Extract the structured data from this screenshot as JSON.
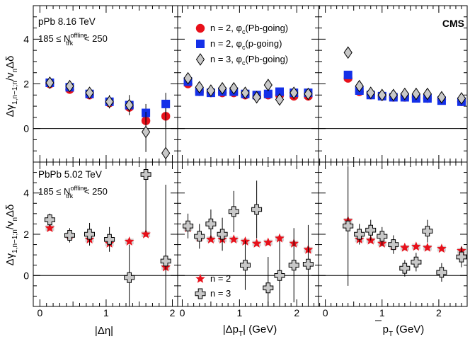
{
  "figure": {
    "experiment_label": "CMS",
    "xlabels": [
      "|Δη|",
      "|Δp",
      "p"
    ],
    "xlabel_unit": " (GeV)",
    "xlabel_sub": "T",
    "ylabel": "Δγ",
    "ylabel_sub": "1,n−1;n",
    "ylabel_rest": "/v",
    "ylabel_n": "n",
    "ylabel_delta": "Δδ"
  },
  "rows": [
    {
      "system": "pPb 8.16 TeV",
      "cut": {
        "prefix": "185 ≤ N",
        "sup": "offline",
        "sub": "trk",
        "suffix": " < 250"
      },
      "legend": [
        {
          "marker": "circle",
          "label_a": "n = 2, φ",
          "sub": "c",
          "label_b": "(Pb-going)"
        },
        {
          "marker": "square",
          "label_a": "n = 2, φ",
          "sub": "c",
          "label_b": "(p-going)"
        },
        {
          "marker": "diamond",
          "label_a": "n = 3, φ",
          "sub": "c",
          "label_b": "(Pb-going)"
        }
      ]
    },
    {
      "system": "PbPb 5.02 TeV",
      "cut": {
        "prefix": "185 ≤ N",
        "sup": "offline",
        "sub": "trk",
        "suffix": " < 250"
      },
      "legend": [
        {
          "marker": "star",
          "label_a": "n = 2",
          "sub": "",
          "label_b": ""
        },
        {
          "marker": "cross",
          "label_a": "n = 3",
          "sub": "",
          "label_b": ""
        }
      ]
    }
  ],
  "chart_data": [
    {
      "type": "scatter",
      "row": 0,
      "col": 0,
      "xlabel": "|Δη|",
      "ylabel": "Δγ1,n−1;n/vnΔδ",
      "xlim": [
        -0.1,
        2.08
      ],
      "ylim": [
        -1.5,
        5.5
      ],
      "xticks": [
        0,
        1,
        2
      ],
      "yticks": [
        0,
        2,
        4
      ],
      "series": [
        {
          "name": "n = 2, φc(Pb-going)",
          "marker": "circle",
          "x": [
            0.15,
            0.45,
            0.75,
            1.05,
            1.35,
            1.6,
            1.9
          ],
          "y": [
            2.0,
            1.75,
            1.5,
            1.15,
            0.95,
            0.35,
            0.55
          ],
          "err": [
            0.1,
            0.1,
            0.1,
            0.15,
            0.2,
            0.4,
            0.5
          ]
        },
        {
          "name": "n = 2, φc(p-going)",
          "marker": "square",
          "x": [
            0.15,
            0.45,
            0.75,
            1.05,
            1.35,
            1.6,
            1.9
          ],
          "y": [
            2.05,
            1.85,
            1.55,
            1.2,
            1.05,
            0.7,
            1.1
          ],
          "err": [
            0.1,
            0.1,
            0.1,
            0.15,
            0.2,
            0.4,
            0.5
          ]
        },
        {
          "name": "n = 3, φc(Pb-going)",
          "marker": "diamond",
          "x": [
            0.15,
            0.45,
            0.75,
            1.05,
            1.35,
            1.6,
            1.9
          ],
          "y": [
            2.05,
            1.9,
            1.6,
            1.2,
            1.05,
            -0.15,
            -1.1
          ],
          "err": [
            0.15,
            0.15,
            0.2,
            0.3,
            0.45,
            0.9,
            1.9
          ]
        }
      ]
    },
    {
      "type": "scatter",
      "row": 0,
      "col": 1,
      "xlabel": "|ΔpT| (GeV)",
      "ylabel": "",
      "xlim": [
        -0.08,
        2.38
      ],
      "ylim": [
        -1.5,
        5.5
      ],
      "xticks": [
        0,
        1,
        2
      ],
      "yticks": [
        0,
        2,
        4
      ],
      "series": [
        {
          "name": "n = 2, φc(Pb-going)",
          "marker": "circle",
          "x": [
            0.1,
            0.3,
            0.5,
            0.7,
            0.9,
            1.1,
            1.3,
            1.5,
            1.7,
            1.95,
            2.2
          ],
          "y": [
            2.0,
            1.65,
            1.6,
            1.6,
            1.6,
            1.5,
            1.45,
            1.5,
            1.5,
            1.45,
            1.45
          ],
          "err": [
            0.05,
            0.05,
            0.05,
            0.05,
            0.05,
            0.05,
            0.05,
            0.05,
            0.05,
            0.05,
            0.05
          ]
        },
        {
          "name": "n = 2, φc(p-going)",
          "marker": "square",
          "x": [
            0.1,
            0.3,
            0.5,
            0.7,
            0.9,
            1.1,
            1.3,
            1.5,
            1.7,
            1.95,
            2.2
          ],
          "y": [
            2.1,
            1.65,
            1.6,
            1.65,
            1.65,
            1.55,
            1.5,
            1.55,
            1.65,
            1.6,
            1.6
          ],
          "err": [
            0.05,
            0.05,
            0.05,
            0.05,
            0.05,
            0.05,
            0.05,
            0.05,
            0.05,
            0.05,
            0.05
          ]
        },
        {
          "name": "n = 3, φc(Pb-going)",
          "marker": "diamond",
          "x": [
            0.1,
            0.3,
            0.5,
            0.7,
            0.9,
            1.1,
            1.3,
            1.5,
            1.7,
            1.95,
            2.2
          ],
          "y": [
            2.25,
            1.85,
            1.7,
            1.8,
            1.8,
            1.6,
            1.4,
            1.95,
            1.3,
            1.6,
            1.55
          ],
          "err": [
            0.15,
            0.15,
            0.15,
            0.15,
            0.15,
            0.15,
            0.15,
            0.15,
            0.15,
            0.15,
            0.15
          ]
        }
      ]
    },
    {
      "type": "scatter",
      "row": 0,
      "col": 2,
      "xlabel": "pT (GeV)",
      "ylabel": "",
      "xlim": [
        -0.12,
        2.5
      ],
      "ylim": [
        -1.5,
        5.5
      ],
      "xticks": [
        0,
        1,
        2
      ],
      "yticks": [
        0,
        2,
        4
      ],
      "series": [
        {
          "name": "n = 2, φc(Pb-going)",
          "marker": "circle",
          "x": [
            0.4,
            0.6,
            0.8,
            1.0,
            1.2,
            1.4,
            1.6,
            1.8,
            2.05,
            2.4
          ],
          "y": [
            2.25,
            1.65,
            1.5,
            1.45,
            1.4,
            1.4,
            1.4,
            1.35,
            1.3,
            1.2
          ],
          "err": [
            0.05,
            0.05,
            0.05,
            0.05,
            0.05,
            0.05,
            0.05,
            0.05,
            0.05,
            0.05
          ]
        },
        {
          "name": "n = 2, φc(p-going)",
          "marker": "square",
          "x": [
            0.4,
            0.6,
            0.8,
            1.0,
            1.2,
            1.4,
            1.6,
            1.8,
            2.05,
            2.4
          ],
          "y": [
            2.4,
            1.7,
            1.5,
            1.45,
            1.4,
            1.4,
            1.35,
            1.35,
            1.25,
            1.2
          ],
          "err": [
            0.05,
            0.05,
            0.05,
            0.05,
            0.05,
            0.05,
            0.05,
            0.05,
            0.05,
            0.05
          ]
        },
        {
          "name": "n = 3, φc(Pb-going)",
          "marker": "diamond",
          "x": [
            0.4,
            0.6,
            0.8,
            1.0,
            1.2,
            1.4,
            1.6,
            1.8,
            2.05,
            2.4
          ],
          "y": [
            3.4,
            1.9,
            1.6,
            1.5,
            1.5,
            1.55,
            1.55,
            1.55,
            1.4,
            1.35
          ],
          "err": [
            0.25,
            0.15,
            0.12,
            0.12,
            0.12,
            0.12,
            0.12,
            0.12,
            0.12,
            0.12
          ]
        }
      ]
    },
    {
      "type": "scatter",
      "row": 1,
      "col": 0,
      "xlabel": "|Δη|",
      "ylabel": "Δγ1,n−1;n/vnΔδ",
      "xlim": [
        -0.1,
        2.08
      ],
      "ylim": [
        -1.5,
        5.5
      ],
      "xticks": [
        0,
        1,
        2
      ],
      "yticks": [
        0,
        2,
        4
      ],
      "series": [
        {
          "name": "n = 2",
          "marker": "star",
          "x": [
            0.15,
            0.45,
            0.75,
            1.05,
            1.35,
            1.6,
            1.9
          ],
          "y": [
            2.3,
            1.95,
            1.75,
            1.55,
            1.65,
            2.0,
            0.4
          ],
          "err": [
            0.1,
            0.1,
            0.1,
            0.1,
            0.1,
            0.1,
            0.1
          ]
        },
        {
          "name": "n = 3",
          "marker": "cross",
          "x": [
            0.15,
            0.45,
            0.75,
            1.05,
            1.35,
            1.6,
            1.9
          ],
          "y": [
            2.7,
            1.95,
            2.0,
            1.75,
            -0.1,
            4.9,
            0.7
          ],
          "err": [
            0.3,
            0.35,
            0.55,
            0.6,
            1.6,
            2.8,
            3.7
          ]
        }
      ]
    },
    {
      "type": "scatter",
      "row": 1,
      "col": 1,
      "xlabel": "|ΔpT| (GeV)",
      "ylabel": "",
      "xlim": [
        -0.08,
        2.38
      ],
      "ylim": [
        -1.5,
        5.5
      ],
      "xticks": [
        0,
        1,
        2
      ],
      "yticks": [
        0,
        2,
        4
      ],
      "series": [
        {
          "name": "n = 2",
          "marker": "star",
          "x": [
            0.1,
            0.3,
            0.5,
            0.7,
            0.9,
            1.1,
            1.3,
            1.5,
            1.7,
            1.95,
            2.2
          ],
          "y": [
            2.3,
            1.85,
            1.75,
            1.75,
            1.75,
            1.65,
            1.55,
            1.6,
            1.8,
            1.55,
            1.25
          ],
          "err": [
            0.05,
            0.05,
            0.05,
            0.05,
            0.05,
            0.05,
            0.05,
            0.05,
            0.05,
            0.05,
            0.05
          ]
        },
        {
          "name": "n = 3",
          "marker": "cross",
          "x": [
            0.1,
            0.3,
            0.5,
            0.7,
            0.9,
            1.1,
            1.3,
            1.5,
            1.7,
            1.95,
            2.2
          ],
          "y": [
            2.4,
            1.9,
            2.5,
            2.0,
            3.1,
            0.5,
            3.2,
            -0.6,
            0.0,
            0.5,
            0.55
          ],
          "err": [
            0.6,
            0.6,
            0.7,
            0.8,
            1.0,
            1.2,
            1.4,
            1.5,
            1.7,
            1.8,
            1.9
          ]
        }
      ]
    },
    {
      "type": "scatter",
      "row": 1,
      "col": 2,
      "xlabel": "pT (GeV)",
      "ylabel": "",
      "xlim": [
        -0.12,
        2.5
      ],
      "ylim": [
        -1.5,
        5.5
      ],
      "xticks": [
        0,
        1,
        2
      ],
      "yticks": [
        0,
        2,
        4
      ],
      "series": [
        {
          "name": "n = 2",
          "marker": "star",
          "x": [
            0.4,
            0.6,
            0.8,
            1.0,
            1.2,
            1.4,
            1.6,
            1.8,
            2.05,
            2.4
          ],
          "y": [
            2.65,
            1.75,
            1.7,
            1.55,
            1.45,
            1.35,
            1.4,
            1.35,
            1.3,
            1.2
          ],
          "err": [
            0.05,
            0.05,
            0.05,
            0.05,
            0.05,
            0.05,
            0.05,
            0.05,
            0.05,
            0.05
          ]
        },
        {
          "name": "n = 3",
          "marker": "cross",
          "x": [
            0.4,
            0.6,
            0.8,
            1.0,
            1.2,
            1.4,
            1.6,
            1.8,
            2.05,
            2.4
          ],
          "y": [
            2.4,
            2.0,
            2.2,
            1.9,
            1.5,
            0.35,
            0.65,
            2.15,
            0.15,
            0.9
          ],
          "err": [
            2.9,
            0.5,
            0.5,
            0.45,
            0.45,
            0.4,
            0.45,
            0.55,
            0.45,
            0.5
          ]
        }
      ]
    }
  ]
}
